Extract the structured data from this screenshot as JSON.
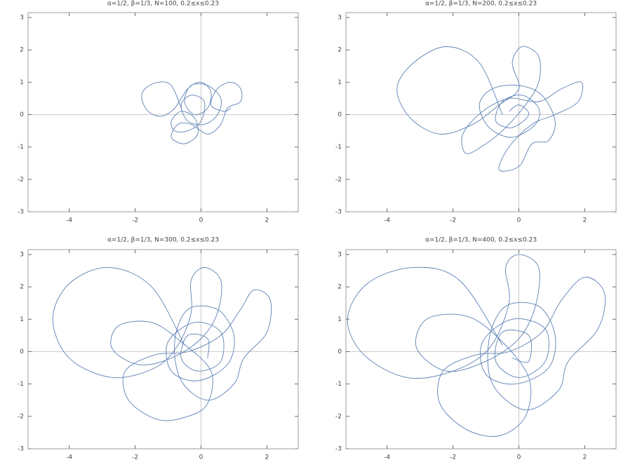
{
  "chart_data": [
    {
      "type": "line",
      "title": "α=1/2, β=1/3, N=100, 0.2≤x≤0.23",
      "color": "#5e81b5",
      "xlim": [
        -5.25,
        2.95
      ],
      "ylim": [
        -3,
        3.15
      ],
      "xticks": [
        -4,
        -2,
        0,
        2
      ],
      "yticks": [
        -3,
        -2,
        -1,
        0,
        1,
        2,
        3
      ],
      "x": [
        -0.6,
        -0.9,
        -1.3,
        -1.7,
        -1.8,
        -1.6,
        -1.2,
        -0.8,
        -0.4,
        0,
        0.3,
        0.2,
        -0.2,
        -0.5,
        -0.3,
        0.2,
        0.6,
        0.5,
        0.1,
        -0.4,
        -0.6,
        -0.3,
        0.1,
        0,
        -0.4,
        -0.8,
        -0.9,
        -0.6,
        -0.2,
        -0.1,
        -0.5,
        -0.9,
        -0.7,
        -0.3,
        0.2,
        0.6,
        0.8,
        1.2,
        1.2,
        0.9,
        0.5,
        0.3,
        0.7,
        0.9
      ],
      "values": [
        0.2,
        0.9,
        1.0,
        0.8,
        0.5,
        0.1,
        -0.05,
        0.2,
        0.8,
        1.0,
        0.7,
        0.2,
        0,
        0.4,
        0.9,
        0.9,
        0.5,
        0,
        -0.3,
        -0.2,
        0.3,
        0.6,
        0.4,
        -0.2,
        -0.5,
        -0.5,
        -0.2,
        0.1,
        -0.1,
        -0.6,
        -0.9,
        -0.7,
        -0.3,
        -0.3,
        -0.6,
        -0.3,
        0.2,
        0.4,
        0.8,
        1.0,
        0.8,
        0.3,
        0.1,
        0.2
      ]
    },
    {
      "type": "line",
      "title": "α=1/2, β=1/3, N=200, 0.2≤x≤0.23",
      "color": "#5e81b5",
      "xlim": [
        -5.25,
        2.95
      ],
      "ylim": [
        -3,
        3.15
      ],
      "xticks": [
        -4,
        -2,
        0,
        2
      ],
      "yticks": [
        -3,
        -2,
        -1,
        0,
        1,
        2,
        3
      ],
      "x": [
        -0.5,
        -1.2,
        -2.2,
        -3.2,
        -3.7,
        -3.3,
        -2.4,
        -1.4,
        -0.6,
        0,
        -0.2,
        0.1,
        0.6,
        0.6,
        0.2,
        -0.4,
        -1,
        -1.6,
        -1.7,
        -1.1,
        -0.3,
        0.6,
        1.3,
        1.9,
        1.8,
        1.1,
        0.4,
        -0.3,
        -0.6,
        0,
        0.4,
        0.9,
        1.1,
        0.7,
        0,
        -0.8,
        -1.2,
        -0.9,
        -0.2,
        0.5,
        0.6,
        0.1,
        -0.5,
        -0.7,
        -0.2,
        0.3,
        0,
        -0.3
      ],
      "values": [
        0,
        1.6,
        2.1,
        1.6,
        0.8,
        -0.1,
        -0.6,
        -0.3,
        0.3,
        0.8,
        1.6,
        2.1,
        1.8,
        1.0,
        0.3,
        -0.4,
        -0.9,
        -1.2,
        -0.6,
        0.1,
        0.5,
        0.4,
        0.8,
        1.0,
        0.4,
        0,
        -0.3,
        -1.0,
        -1.7,
        -1.6,
        -0.9,
        -0.8,
        -0.2,
        0.6,
        0.9,
        0.8,
        0.3,
        -0.4,
        -0.7,
        -0.3,
        0.2,
        0.6,
        0.4,
        -0.2,
        -0.4,
        0,
        0.3,
        0.1
      ]
    },
    {
      "type": "line",
      "title": "α=1/2, β=1/3, N=300, 0.2≤x≤0.23",
      "color": "#5e81b5",
      "xlim": [
        -5.25,
        2.95
      ],
      "ylim": [
        -3,
        3.15
      ],
      "xticks": [
        -4,
        -2,
        0,
        2
      ],
      "yticks": [
        -3,
        -2,
        -1,
        0,
        1,
        2,
        3
      ],
      "x": [
        -0.5,
        -1.5,
        -2.8,
        -4.0,
        -4.5,
        -4.0,
        -2.7,
        -1.4,
        -0.7,
        -0.3,
        -0.3,
        0.1,
        0.6,
        0.5,
        0,
        -0.9,
        -1.9,
        -2.7,
        -2.5,
        -1.5,
        -0.6,
        0.3,
        0.2,
        -0.4,
        -1.3,
        -2.2,
        -2.3,
        -1.4,
        -0.4,
        0.6,
        1.2,
        1.6,
        2.1,
        2.0,
        1.3,
        1.0,
        0.2,
        -0.6,
        -0.8,
        -0.4,
        0.5,
        1.0,
        0.8,
        -0.1,
        -0.9,
        -1.0,
        -0.2,
        0.6,
        0.6,
        -0.1,
        -0.6,
        -0.4,
        0.2,
        0.2
      ],
      "values": [
        0.2,
        2.0,
        2.6,
        2.1,
        1.0,
        -0.2,
        -0.8,
        -0.5,
        0.2,
        1.2,
        2.2,
        2.6,
        2.2,
        1.2,
        0.4,
        -0.2,
        -0.4,
        0.1,
        0.8,
        0.9,
        0.3,
        -0.6,
        -1.6,
        -2.0,
        -2.1,
        -1.5,
        -0.6,
        -0.1,
        0,
        0.5,
        1.3,
        1.9,
        1.6,
        0.6,
        -0.2,
        -1.0,
        -1.5,
        -0.9,
        0.3,
        1.3,
        1.3,
        0.5,
        -0.4,
        -0.9,
        -0.6,
        0.3,
        0.9,
        0.6,
        -0.3,
        -0.6,
        -0.2,
        0.5,
        0.4,
        -0.2
      ]
    },
    {
      "type": "line",
      "title": "α=1/2, β=1/3, N=400, 0.2≤x≤0.23",
      "color": "#5e81b5",
      "xlim": [
        -5.25,
        2.95
      ],
      "ylim": [
        -3,
        3.15
      ],
      "xticks": [
        -4,
        -2,
        0,
        2
      ],
      "yticks": [
        -3,
        -2,
        -1,
        0,
        1,
        2,
        3
      ],
      "x": [
        -0.5,
        -1.8,
        -3.2,
        -4.6,
        -5.2,
        -4.7,
        -3.4,
        -2.0,
        -0.9,
        -0.3,
        -0.4,
        0,
        0.6,
        0.5,
        0,
        -1.0,
        -2.2,
        -3.1,
        -2.8,
        -1.6,
        -0.6,
        0.3,
        0.2,
        -0.6,
        -1.6,
        -2.4,
        -2.3,
        -1.3,
        -0.3,
        0.7,
        1.3,
        2.0,
        2.6,
        2.4,
        1.5,
        1.2,
        0.2,
        -0.8,
        -0.9,
        -0.4,
        0.6,
        1.1,
        0.9,
        -0.1,
        -1.0,
        -1.1,
        -0.2,
        0.8,
        0.8,
        0,
        -0.7,
        -0.5,
        0.3,
        0.3,
        -0.2
      ],
      "values": [
        0.2,
        2.2,
        2.6,
        2.1,
        1.0,
        -0.1,
        -0.8,
        -0.6,
        0.1,
        1.5,
        2.6,
        3.0,
        2.6,
        1.4,
        0.4,
        -0.3,
        -0.6,
        0.1,
        1.0,
        1.1,
        0.4,
        -0.8,
        -2.0,
        -2.6,
        -2.4,
        -1.6,
        -0.6,
        -0.1,
        0,
        0.6,
        1.6,
        2.3,
        1.8,
        0.7,
        -0.3,
        -1.2,
        -1.8,
        -1.0,
        0.4,
        1.4,
        1.4,
        0.5,
        -0.5,
        -1.0,
        -0.7,
        0.3,
        1.0,
        0.7,
        -0.3,
        -0.8,
        -0.3,
        0.6,
        0.5,
        -0.3,
        -0.2
      ]
    }
  ]
}
